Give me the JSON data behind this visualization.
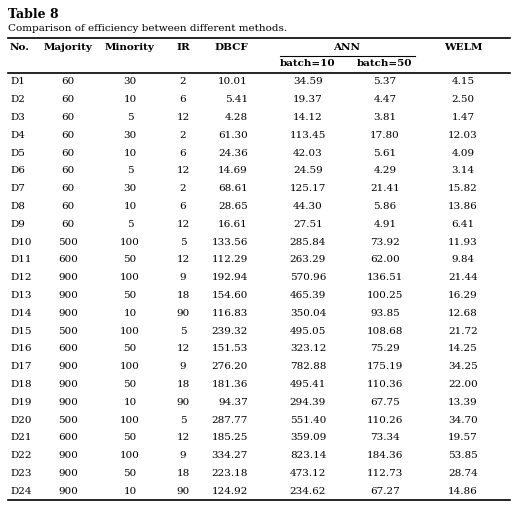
{
  "title": "Table 8",
  "subtitle": "Comparison of efficiency between different methods.",
  "rows": [
    [
      "D1",
      "60",
      "30",
      "2",
      "10.01",
      "34.59",
      "5.37",
      "4.15"
    ],
    [
      "D2",
      "60",
      "10",
      "6",
      "5.41",
      "19.37",
      "4.47",
      "2.50"
    ],
    [
      "D3",
      "60",
      "5",
      "12",
      "4.28",
      "14.12",
      "3.81",
      "1.47"
    ],
    [
      "D4",
      "60",
      "30",
      "2",
      "61.30",
      "113.45",
      "17.80",
      "12.03"
    ],
    [
      "D5",
      "60",
      "10",
      "6",
      "24.36",
      "42.03",
      "5.61",
      "4.09"
    ],
    [
      "D6",
      "60",
      "5",
      "12",
      "14.69",
      "24.59",
      "4.29",
      "3.14"
    ],
    [
      "D7",
      "60",
      "30",
      "2",
      "68.61",
      "125.17",
      "21.41",
      "15.82"
    ],
    [
      "D8",
      "60",
      "10",
      "6",
      "28.65",
      "44.30",
      "5.86",
      "13.86"
    ],
    [
      "D9",
      "60",
      "5",
      "12",
      "16.61",
      "27.51",
      "4.91",
      "6.41"
    ],
    [
      "D10",
      "500",
      "100",
      "5",
      "133.56",
      "285.84",
      "73.92",
      "11.93"
    ],
    [
      "D11",
      "600",
      "50",
      "12",
      "112.29",
      "263.29",
      "62.00",
      "9.84"
    ],
    [
      "D12",
      "900",
      "100",
      "9",
      "192.94",
      "570.96",
      "136.51",
      "21.44"
    ],
    [
      "D13",
      "900",
      "50",
      "18",
      "154.60",
      "465.39",
      "100.25",
      "16.29"
    ],
    [
      "D14",
      "900",
      "10",
      "90",
      "116.83",
      "350.04",
      "93.85",
      "12.68"
    ],
    [
      "D15",
      "500",
      "100",
      "5",
      "239.32",
      "495.05",
      "108.68",
      "21.72"
    ],
    [
      "D16",
      "600",
      "50",
      "12",
      "151.53",
      "323.12",
      "75.29",
      "14.25"
    ],
    [
      "D17",
      "900",
      "100",
      "9",
      "276.20",
      "782.88",
      "175.19",
      "34.25"
    ],
    [
      "D18",
      "900",
      "50",
      "18",
      "181.36",
      "495.41",
      "110.36",
      "22.00"
    ],
    [
      "D19",
      "900",
      "10",
      "90",
      "94.37",
      "294.39",
      "67.75",
      "13.39"
    ],
    [
      "D20",
      "500",
      "100",
      "5",
      "287.77",
      "551.40",
      "110.26",
      "34.70"
    ],
    [
      "D21",
      "600",
      "50",
      "12",
      "185.25",
      "359.09",
      "73.34",
      "19.57"
    ],
    [
      "D22",
      "900",
      "100",
      "9",
      "334.27",
      "823.14",
      "184.36",
      "53.85"
    ],
    [
      "D23",
      "900",
      "50",
      "18",
      "223.18",
      "473.12",
      "112.73",
      "28.74"
    ],
    [
      "D24",
      "900",
      "10",
      "90",
      "124.92",
      "234.62",
      "67.27",
      "14.86"
    ]
  ],
  "bg_color": "#ffffff",
  "line_color": "#000000",
  "fontsize": 7.5,
  "title_fontsize": 9.0,
  "subtitle_fontsize": 7.5
}
